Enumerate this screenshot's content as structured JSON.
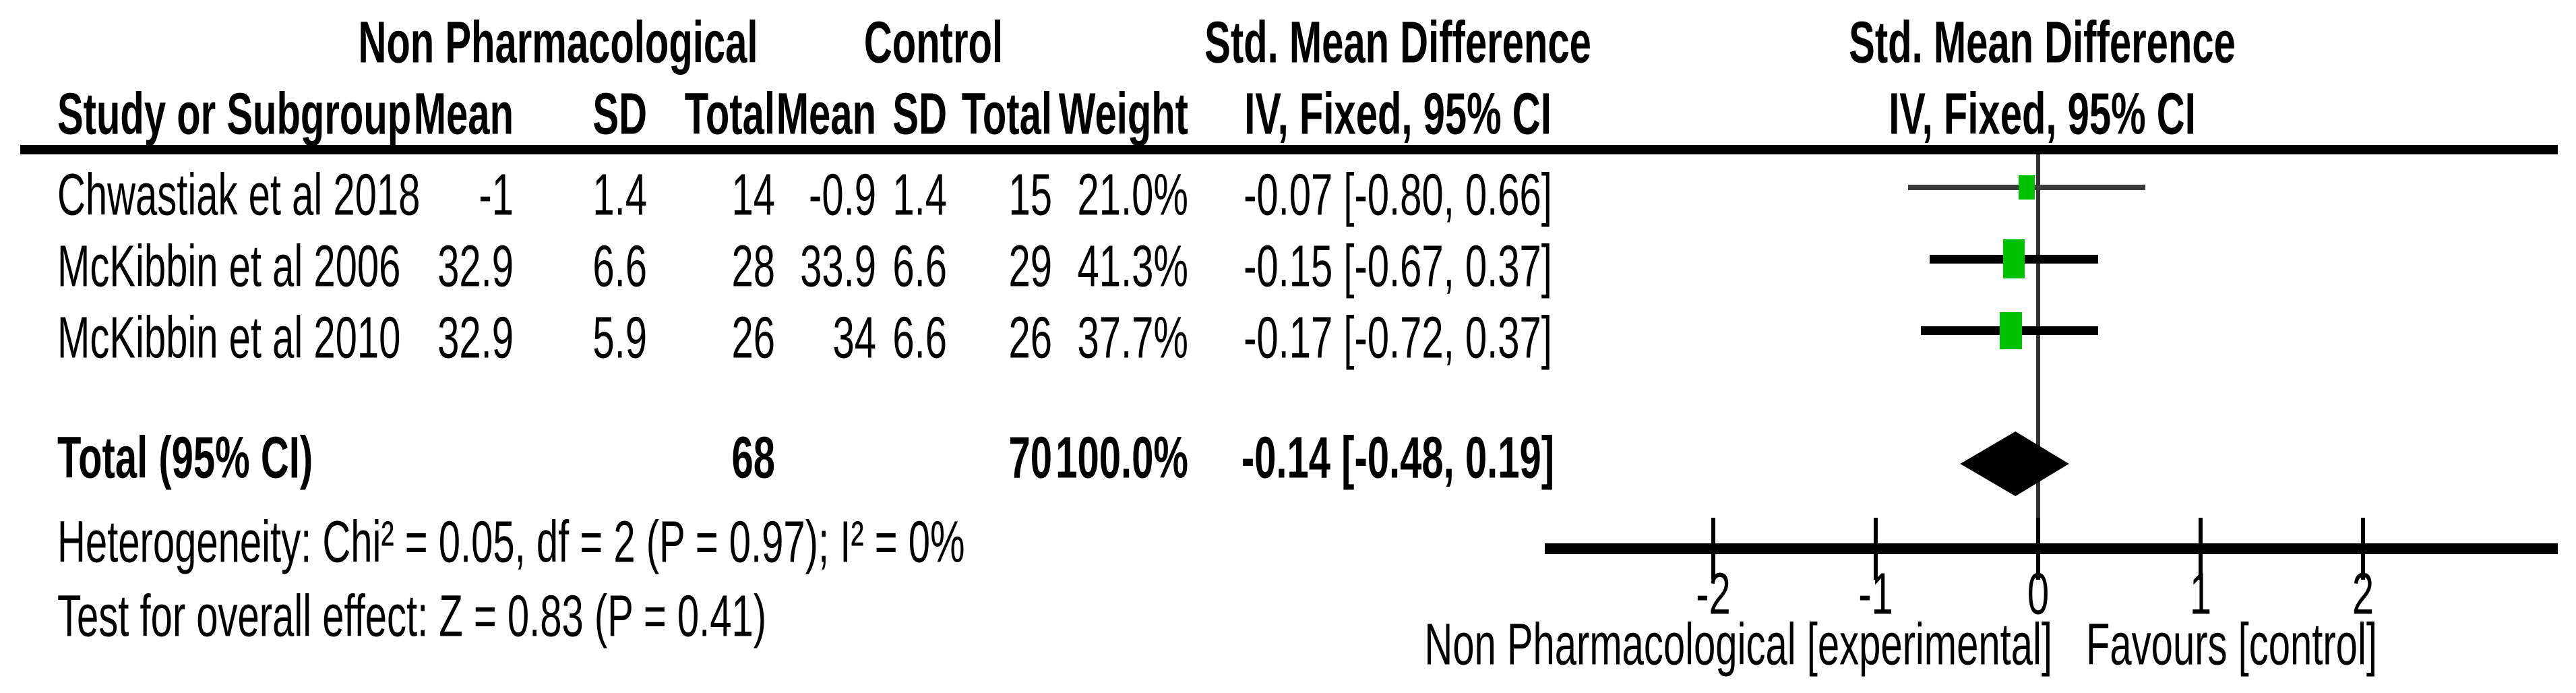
{
  "chart_data": {
    "type": "forest",
    "title_left": "Std. Mean Difference",
    "title_right": "Std. Mean Difference",
    "group1": "Non Pharmacological",
    "group2": "Control",
    "columns": {
      "study": "Study or Subgroup",
      "mean": "Mean",
      "sd": "SD",
      "total": "Total",
      "weight": "Weight",
      "method": "IV, Fixed, 95% CI"
    },
    "studies": [
      {
        "name": "Chwastiak et al 2018",
        "mean1": "-1",
        "sd1": "1.4",
        "total1": "14",
        "mean2": "-0.9",
        "sd2": "1.4",
        "total2": "15",
        "weight": "21.0%",
        "ci_text": "-0.07 [-0.80, 0.66]",
        "est": -0.07,
        "lo": -0.8,
        "hi": 0.66,
        "weight_pct": 21.0
      },
      {
        "name": "McKibbin et al 2006",
        "mean1": "32.9",
        "sd1": "6.6",
        "total1": "28",
        "mean2": "33.9",
        "sd2": "6.6",
        "total2": "29",
        "weight": "41.3%",
        "ci_text": "-0.15 [-0.67, 0.37]",
        "est": -0.15,
        "lo": -0.67,
        "hi": 0.37,
        "weight_pct": 41.3
      },
      {
        "name": "McKibbin et al 2010",
        "mean1": "32.9",
        "sd1": "5.9",
        "total1": "26",
        "mean2": "34",
        "sd2": "6.6",
        "total2": "26",
        "weight": "37.7%",
        "ci_text": "-0.17 [-0.72, 0.37]",
        "est": -0.17,
        "lo": -0.72,
        "hi": 0.37,
        "weight_pct": 37.7
      }
    ],
    "total": {
      "label": "Total (95% CI)",
      "total1": "68",
      "total2": "70",
      "weight": "100.0%",
      "ci_text": "-0.14 [-0.48, 0.19]",
      "est": -0.14,
      "lo": -0.48,
      "hi": 0.19
    },
    "heterogeneity": "Heterogeneity: Chi² = 0.05, df = 2 (P = 0.97); I² = 0%",
    "overall_effect": "Test for overall effect: Z = 0.83 (P = 0.41)",
    "axis": {
      "ticks": [
        -2,
        -1,
        0,
        1,
        2
      ],
      "xlim": [
        -3.03,
        3.18
      ]
    },
    "footer_left": "Non Pharmacological [experimental]",
    "footer_right": "Favours [control]",
    "colors": {
      "marker_green": "#00C000",
      "ci_line": "#000000",
      "ci_line_first": "#3A3A3A",
      "zero_line": "#333333",
      "axis_line": "#000000"
    }
  }
}
